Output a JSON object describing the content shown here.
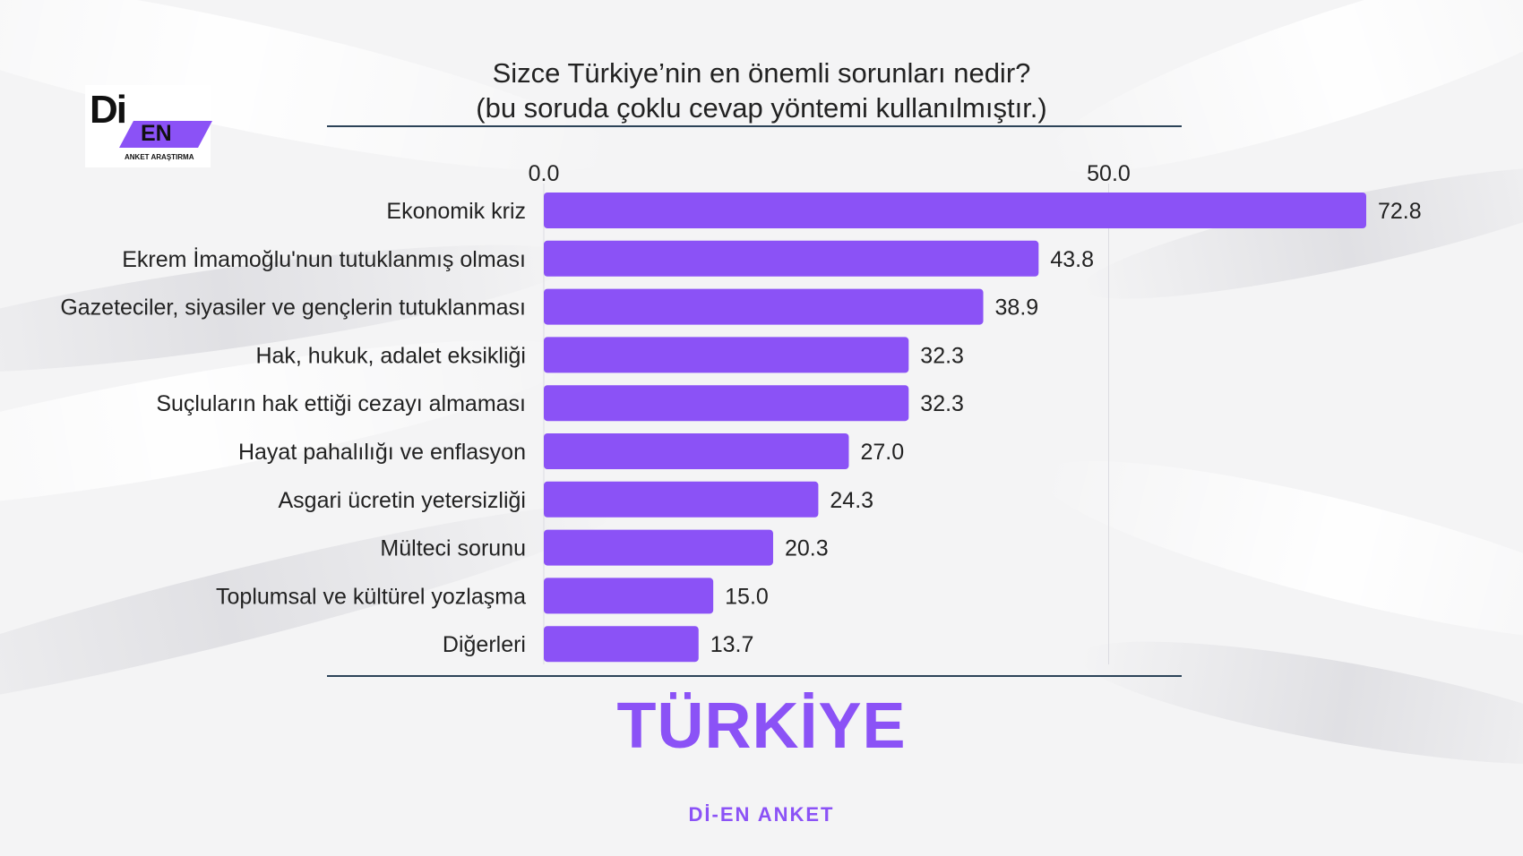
{
  "logo": {
    "primary": "Di",
    "secondary": "EN",
    "tagline": "ANKET ARAŞTIRMA"
  },
  "title": "Sizce Türkiye’nin en önemli sorunları nedir?",
  "subtitle": "(bu soruda çoklu cevap yöntemi kullanılmıştır.)",
  "region": "TÜRKİYE",
  "footer": "Dİ-EN ANKET",
  "colors": {
    "accent": "#8b52f6",
    "rule": "#2c4358",
    "text": "#1e1e1e"
  },
  "chart_data": {
    "type": "bar",
    "orientation": "horizontal",
    "categories": [
      "Ekonomik kriz",
      "Ekrem İmamoğlu'nun tutuklanmış olması",
      "Gazeteciler, siyasiler ve gençlerin tutuklanması",
      "Hak, hukuk, adalet eksikliği",
      "Suçluların hak ettiği cezayı almaması",
      "Hayat pahalılığı ve enflasyon",
      "Asgari ücretin yetersizliği",
      "Mülteci sorunu",
      "Toplumsal ve kültürel yozlaşma",
      "Diğerleri"
    ],
    "values": [
      72.8,
      43.8,
      38.9,
      32.3,
      32.3,
      27.0,
      24.3,
      20.3,
      15.0,
      13.7
    ],
    "value_labels": [
      "72.8",
      "43.8",
      "38.9",
      "32.3",
      "32.3",
      "27.0",
      "24.3",
      "20.3",
      "15.0",
      "13.7"
    ],
    "xticks": [
      0,
      50
    ],
    "xtick_labels": [
      "0.0",
      "50.0"
    ],
    "xlim": [
      0,
      72.8
    ],
    "axis_position": "top",
    "grid": true,
    "legend": "none",
    "bar_color": "#8b52f6"
  }
}
